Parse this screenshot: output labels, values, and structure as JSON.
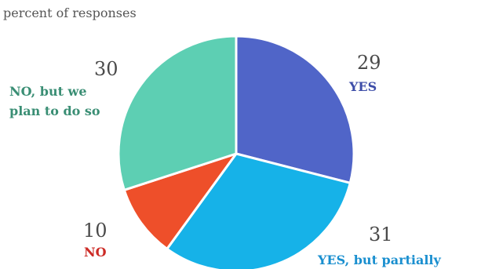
{
  "chart_data": {
    "type": "pie",
    "subtitle": "percent of responses",
    "slices": [
      {
        "label": "YES",
        "value": 29,
        "color": "#5065C8"
      },
      {
        "label": "YES, but partially",
        "value": 31,
        "color": "#16B2E8"
      },
      {
        "label": "NO",
        "value": 10,
        "color": "#EE4F2A"
      },
      {
        "label": "NO, but we plan to do so",
        "label_lines": [
          "NO, but we",
          "plan to do so"
        ],
        "value": 30,
        "color": "#5DCFB3"
      }
    ],
    "label_colors": [
      "#3D4DA8",
      "#1A8FCF",
      "#CC2B26",
      "#3A8E74"
    ]
  }
}
